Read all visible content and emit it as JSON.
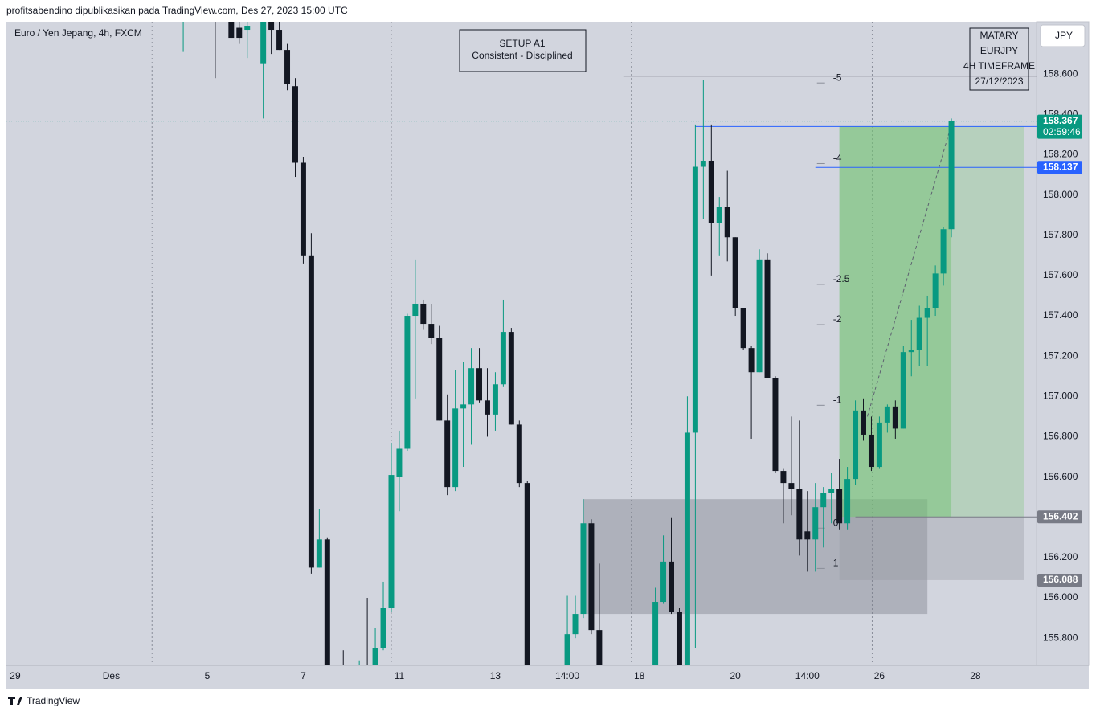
{
  "header": "profitsabendino dipublikasikan pada TradingView.com, Des 27, 2023 15:00 UTC",
  "footer": "TradingView",
  "chart_data": {
    "type": "candlestick",
    "title": "Euro / Yen Jepang, 4h, FXCM",
    "currency": "JPY",
    "up_color": "#089981",
    "down_color": "#131722",
    "x": [
      21,
      25,
      27,
      28,
      29,
      31,
      32,
      33,
      34,
      35,
      36,
      37,
      38,
      39,
      41,
      43,
      44,
      45,
      46,
      47,
      48,
      49,
      50,
      51,
      52,
      53,
      54,
      55,
      56,
      57,
      58,
      59,
      60,
      61,
      62,
      63,
      64,
      69,
      70,
      71,
      72,
      73,
      80,
      81,
      82,
      83,
      84,
      85,
      86,
      87,
      88,
      89,
      90,
      91,
      92,
      93,
      94,
      95,
      96,
      97,
      98,
      99,
      100,
      101,
      102,
      103,
      104,
      105,
      106,
      107,
      108,
      109,
      110,
      111,
      112,
      113,
      114,
      115,
      116,
      117
    ],
    "open": [
      158.88,
      158.95,
      158.9,
      158.83,
      158.82,
      158.65,
      158.95,
      158.82,
      158.72,
      158.54,
      158.16,
      157.7,
      156.15,
      156.29,
      155.58,
      155.5,
      155.65,
      155.6,
      155.75,
      155.95,
      156.6,
      156.74,
      157.4,
      157.46,
      157.36,
      157.29,
      156.88,
      156.55,
      156.94,
      156.96,
      157.14,
      156.98,
      156.91,
      157.06,
      157.32,
      156.86,
      156.57,
      155.6,
      155.82,
      155.92,
      156.37,
      155.84,
      155.66,
      155.98,
      156.18,
      155.93,
      155.66,
      156.82,
      158.14,
      158.17,
      157.86,
      157.94,
      157.79,
      157.44,
      157.24,
      157.12,
      157.68,
      157.09,
      156.63,
      156.57,
      156.54,
      156.33,
      156.29,
      156.45,
      156.52,
      156.54,
      156.37,
      156.59,
      156.93,
      156.81,
      156.65,
      156.87,
      156.95,
      156.84,
      157.22,
      157.23,
      157.39,
      157.44,
      157.61,
      157.83
    ],
    "high": [
      158.95,
      159.0,
      158.95,
      158.88,
      158.95,
      158.95,
      159.0,
      158.87,
      158.75,
      158.58,
      158.19,
      157.81,
      156.44,
      156.3,
      155.74,
      155.69,
      156.0,
      155.85,
      156.08,
      156.77,
      156.83,
      157.41,
      157.68,
      157.48,
      157.46,
      157.35,
      157.01,
      157.13,
      157.17,
      157.24,
      157.24,
      157.14,
      157.12,
      157.48,
      157.34,
      156.88,
      156.58,
      156.01,
      156.01,
      156.49,
      156.39,
      156.17,
      156.05,
      156.31,
      156.4,
      155.95,
      157.0,
      158.35,
      158.57,
      158.35,
      157.99,
      158.12,
      157.79,
      157.44,
      157.25,
      157.73,
      157.71,
      157.1,
      156.64,
      156.9,
      156.88,
      156.53,
      156.57,
      156.55,
      156.62,
      156.69,
      156.65,
      156.98,
      156.99,
      156.9,
      156.9,
      156.96,
      156.98,
      157.25,
      157.38,
      157.45,
      157.5,
      157.65,
      157.84,
      158.38
    ],
    "low": [
      158.71,
      158.58,
      158.78,
      158.75,
      158.68,
      158.38,
      158.7,
      158.72,
      158.52,
      158.09,
      157.66,
      156.12,
      156.15,
      155.5,
      155.4,
      155.4,
      155.5,
      155.55,
      155.74,
      155.93,
      156.43,
      156.73,
      156.99,
      157.33,
      157.26,
      156.88,
      156.51,
      156.53,
      156.65,
      156.76,
      156.97,
      156.8,
      156.83,
      157.05,
      156.86,
      156.55,
      155.6,
      155.5,
      155.8,
      155.9,
      155.82,
      155.6,
      155.55,
      155.97,
      155.92,
      155.6,
      155.6,
      155.75,
      157.88,
      157.6,
      157.7,
      157.67,
      157.4,
      157.23,
      156.79,
      157.12,
      157.09,
      156.62,
      156.37,
      156.41,
      156.21,
      156.13,
      156.13,
      156.25,
      156.37,
      156.34,
      156.34,
      156.56,
      156.78,
      156.63,
      156.64,
      156.82,
      156.79,
      156.84,
      157.1,
      157.15,
      157.15,
      157.4,
      157.55,
      157.79
    ],
    "close": [
      158.9,
      158.9,
      158.78,
      158.78,
      158.84,
      158.9,
      158.82,
      158.72,
      158.55,
      158.16,
      157.7,
      156.15,
      156.29,
      155.6,
      155.5,
      155.6,
      155.55,
      155.75,
      155.95,
      156.61,
      156.74,
      157.4,
      157.46,
      157.36,
      157.29,
      156.88,
      156.55,
      156.94,
      156.96,
      157.14,
      156.98,
      156.91,
      157.06,
      157.32,
      156.86,
      156.57,
      155.66,
      155.82,
      155.92,
      156.37,
      155.84,
      155.66,
      155.98,
      156.18,
      155.93,
      155.66,
      156.82,
      158.14,
      158.17,
      157.86,
      157.94,
      157.79,
      157.44,
      157.24,
      157.12,
      157.68,
      157.09,
      156.63,
      156.57,
      156.54,
      156.29,
      156.29,
      156.45,
      156.52,
      156.54,
      156.37,
      156.59,
      156.93,
      156.81,
      156.65,
      156.87,
      156.95,
      156.84,
      157.22,
      157.23,
      157.39,
      157.44,
      157.61,
      157.83,
      158.367
    ],
    "xlim": [
      -1.1,
      127.64
    ],
    "ylim": [
      155.665,
      158.86
    ],
    "xticks": [
      {
        "value": 0,
        "label": "29"
      },
      {
        "value": 12,
        "label": "Des"
      },
      {
        "value": 24,
        "label": "5"
      },
      {
        "value": 36,
        "label": "7"
      },
      {
        "value": 48,
        "label": "11"
      },
      {
        "value": 60,
        "label": "13"
      },
      {
        "value": 69,
        "label": "14:00"
      },
      {
        "value": 78,
        "label": "18"
      },
      {
        "value": 90,
        "label": "20"
      },
      {
        "value": 99,
        "label": "14:00"
      },
      {
        "value": 108,
        "label": "26"
      },
      {
        "value": 120,
        "label": "28"
      }
    ],
    "yticks": [
      {
        "value": 155.8,
        "label": "155.800"
      },
      {
        "value": 156.0,
        "label": "156.000"
      },
      {
        "value": 156.2,
        "label": "156.200"
      },
      {
        "value": 156.4,
        "label": "156.400"
      },
      {
        "value": 156.6,
        "label": "156.600"
      },
      {
        "value": 156.8,
        "label": "156.800"
      },
      {
        "value": 157.0,
        "label": "157.000"
      },
      {
        "value": 157.2,
        "label": "157.200"
      },
      {
        "value": 157.4,
        "label": "157.400"
      },
      {
        "value": 157.6,
        "label": "157.600"
      },
      {
        "value": 157.8,
        "label": "157.800"
      },
      {
        "value": 158.0,
        "label": "158.000"
      },
      {
        "value": 158.2,
        "label": "158.200"
      },
      {
        "value": 158.4,
        "label": "158.400"
      },
      {
        "value": 158.6,
        "label": "158.600"
      }
    ],
    "xgrid": [
      17.1,
      47,
      77,
      107.1
    ],
    "zone": {
      "from": 71,
      "to": 114,
      "top": 156.49,
      "bottom": 155.92
    },
    "position": {
      "from": 103,
      "to": 126.1,
      "filled_to": 117,
      "entry": 156.402,
      "stop": 156.088,
      "target": 158.34
    },
    "hlines": [
      {
        "value": 158.367,
        "color": "#089981",
        "dash": "1 2"
      },
      {
        "value": 158.34,
        "from": 85,
        "color": "#2962ff"
      },
      {
        "value": 158.137,
        "from": 100,
        "color": "#2962ff"
      },
      {
        "value": 158.59,
        "from": 76,
        "color": "#787b86"
      },
      {
        "value": 156.402,
        "from": 105,
        "color": "#787b86"
      }
    ],
    "trend": {
      "x": [
        106.5,
        117
      ],
      "y": [
        156.9,
        158.35
      ]
    },
    "fib": {
      "x": 101,
      "levels": [
        {
          "level": -5,
          "price": 158.58
        },
        {
          "level": -4,
          "price": 158.18
        },
        {
          "level": -2.5,
          "price": 157.58
        },
        {
          "level": -2,
          "price": 157.38
        },
        {
          "level": -1,
          "price": 156.98
        },
        {
          "level": 0,
          "price": 156.37
        },
        {
          "level": 1,
          "price": 156.17
        }
      ]
    },
    "price_labels": [
      {
        "value": 158.367,
        "sub": "02:59:46",
        "color": "#089981"
      },
      {
        "value": 158.137,
        "color": "#2962ff"
      },
      {
        "value": 156.402,
        "color": "#787b86"
      },
      {
        "value": 156.088,
        "color": "#787b86"
      }
    ],
    "notes": [
      {
        "lines": [
          "SETUP A1",
          "Consistent - Disciplined"
        ]
      },
      {
        "lines": [
          "MATARY",
          "EURJPY",
          "4H TIMEFRAME",
          "27/12/2023"
        ]
      }
    ]
  }
}
